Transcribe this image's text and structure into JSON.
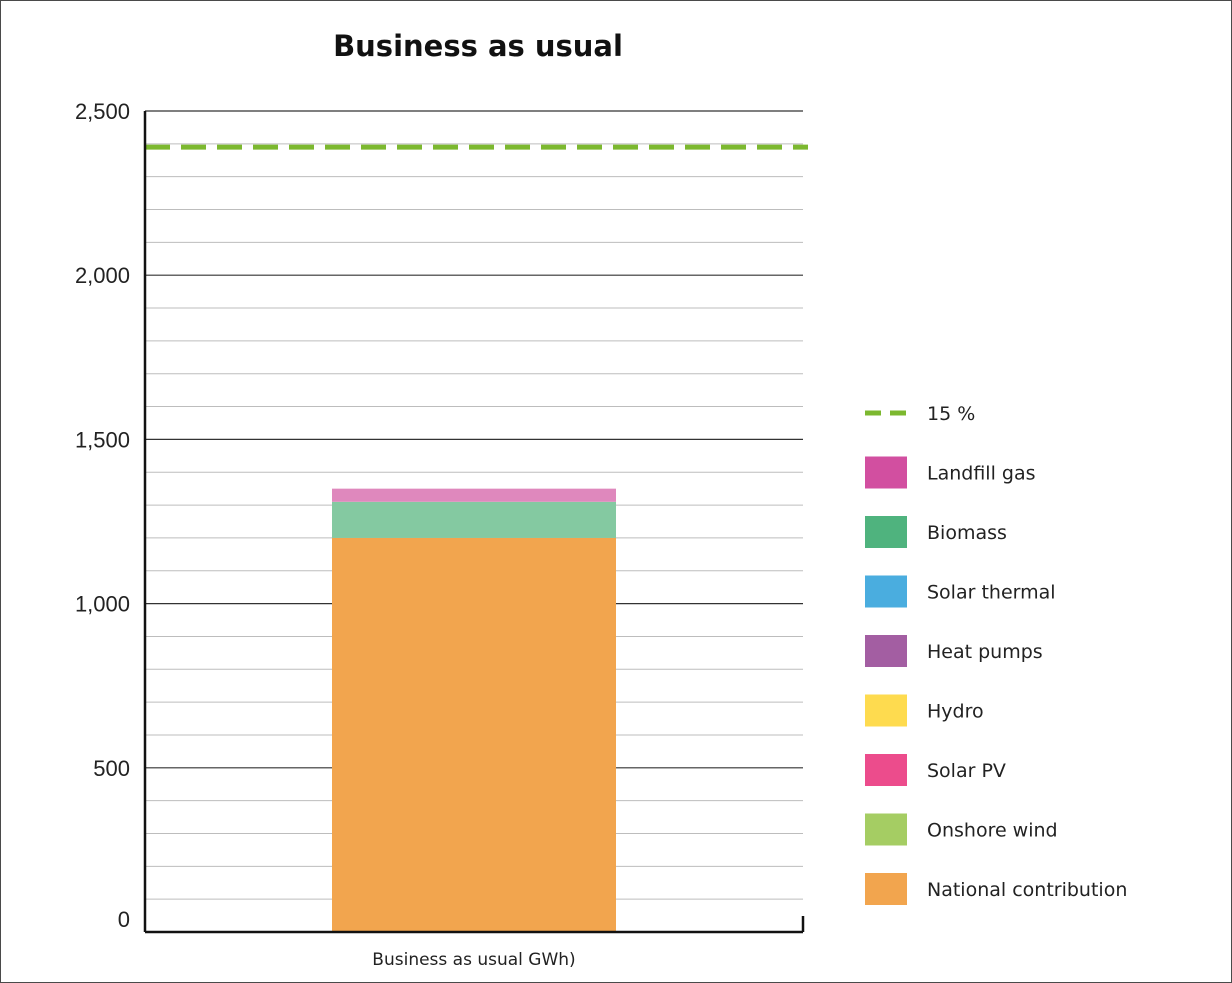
{
  "chart_data": {
    "type": "bar",
    "stacked": true,
    "title": "Business as usual",
    "xlabel": "",
    "ylabel": "",
    "categories": [
      "Business as usual GWh)"
    ],
    "ylim": [
      0,
      2500
    ],
    "yticks": [
      0,
      500,
      1000,
      1500,
      2000,
      2500
    ],
    "ytick_labels": [
      "0",
      "500",
      "1,000",
      "1,500",
      "2,000",
      "2,500"
    ],
    "minor_grid_step": 100,
    "grid": true,
    "legend_position": "right",
    "series": [
      {
        "name": "National contribution",
        "color": "#f2a54e",
        "values": [
          1200
        ]
      },
      {
        "name": "Onshore wind",
        "color": "#a5cd63",
        "values": [
          0
        ]
      },
      {
        "name": "Solar PV",
        "color": "#ec4c8c",
        "values": [
          0
        ]
      },
      {
        "name": "Hydro",
        "color": "#fedb4f",
        "values": [
          0
        ]
      },
      {
        "name": "Heat pumps",
        "color": "#a35ea2",
        "values": [
          0
        ]
      },
      {
        "name": "Solar thermal",
        "color": "#4aaddf",
        "values": [
          0
        ]
      },
      {
        "name": "Biomass",
        "color": "#84c9a1",
        "values": [
          110
        ]
      },
      {
        "name": "Landfill gas",
        "color": "#df88bd",
        "values": [
          40
        ]
      }
    ],
    "legend": [
      {
        "name": "15 %",
        "type": "dashed-line",
        "color": "#7cb82f"
      },
      {
        "name": "Landfill gas",
        "type": "box",
        "color": "#d24fa0"
      },
      {
        "name": "Biomass",
        "type": "box",
        "color": "#4fb37e"
      },
      {
        "name": "Solar thermal",
        "type": "box",
        "color": "#4aaddf"
      },
      {
        "name": "Heat pumps",
        "type": "box",
        "color": "#a35ea2"
      },
      {
        "name": "Hydro",
        "type": "box",
        "color": "#fedb4f"
      },
      {
        "name": "Solar PV",
        "type": "box",
        "color": "#ec4c8c"
      },
      {
        "name": "Onshore wind",
        "type": "box",
        "color": "#a5cd63"
      },
      {
        "name": "National contribution",
        "type": "box",
        "color": "#f2a54e"
      }
    ],
    "reference_line": {
      "name": "15 %",
      "value": 2390,
      "color": "#7cb82f",
      "style": "dashed"
    }
  }
}
